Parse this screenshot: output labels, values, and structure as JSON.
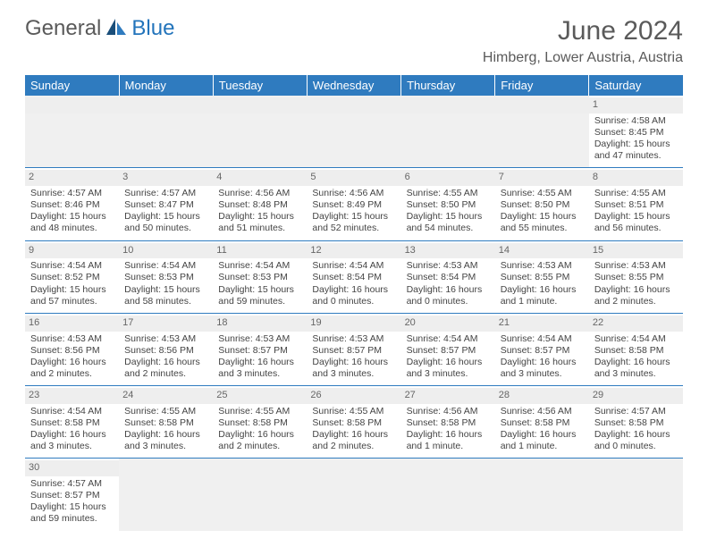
{
  "logo": {
    "textA": "General",
    "textB": "Blue"
  },
  "title": "June 2024",
  "subtitle": "Himberg, Lower Austria, Austria",
  "colors": {
    "header_bg": "#2f7bbf",
    "header_fg": "#ffffff",
    "daynum_bg": "#eeeeee",
    "rule": "#2f7bbf",
    "title": "#5a5a5a"
  },
  "dayHeaders": [
    "Sunday",
    "Monday",
    "Tuesday",
    "Wednesday",
    "Thursday",
    "Friday",
    "Saturday"
  ],
  "weeks": [
    [
      null,
      null,
      null,
      null,
      null,
      null,
      {
        "n": "1",
        "sunrise": "Sunrise: 4:58 AM",
        "sunset": "Sunset: 8:45 PM",
        "daylight": "Daylight: 15 hours and 47 minutes."
      }
    ],
    [
      {
        "n": "2",
        "sunrise": "Sunrise: 4:57 AM",
        "sunset": "Sunset: 8:46 PM",
        "daylight": "Daylight: 15 hours and 48 minutes."
      },
      {
        "n": "3",
        "sunrise": "Sunrise: 4:57 AM",
        "sunset": "Sunset: 8:47 PM",
        "daylight": "Daylight: 15 hours and 50 minutes."
      },
      {
        "n": "4",
        "sunrise": "Sunrise: 4:56 AM",
        "sunset": "Sunset: 8:48 PM",
        "daylight": "Daylight: 15 hours and 51 minutes."
      },
      {
        "n": "5",
        "sunrise": "Sunrise: 4:56 AM",
        "sunset": "Sunset: 8:49 PM",
        "daylight": "Daylight: 15 hours and 52 minutes."
      },
      {
        "n": "6",
        "sunrise": "Sunrise: 4:55 AM",
        "sunset": "Sunset: 8:50 PM",
        "daylight": "Daylight: 15 hours and 54 minutes."
      },
      {
        "n": "7",
        "sunrise": "Sunrise: 4:55 AM",
        "sunset": "Sunset: 8:50 PM",
        "daylight": "Daylight: 15 hours and 55 minutes."
      },
      {
        "n": "8",
        "sunrise": "Sunrise: 4:55 AM",
        "sunset": "Sunset: 8:51 PM",
        "daylight": "Daylight: 15 hours and 56 minutes."
      }
    ],
    [
      {
        "n": "9",
        "sunrise": "Sunrise: 4:54 AM",
        "sunset": "Sunset: 8:52 PM",
        "daylight": "Daylight: 15 hours and 57 minutes."
      },
      {
        "n": "10",
        "sunrise": "Sunrise: 4:54 AM",
        "sunset": "Sunset: 8:53 PM",
        "daylight": "Daylight: 15 hours and 58 minutes."
      },
      {
        "n": "11",
        "sunrise": "Sunrise: 4:54 AM",
        "sunset": "Sunset: 8:53 PM",
        "daylight": "Daylight: 15 hours and 59 minutes."
      },
      {
        "n": "12",
        "sunrise": "Sunrise: 4:54 AM",
        "sunset": "Sunset: 8:54 PM",
        "daylight": "Daylight: 16 hours and 0 minutes."
      },
      {
        "n": "13",
        "sunrise": "Sunrise: 4:53 AM",
        "sunset": "Sunset: 8:54 PM",
        "daylight": "Daylight: 16 hours and 0 minutes."
      },
      {
        "n": "14",
        "sunrise": "Sunrise: 4:53 AM",
        "sunset": "Sunset: 8:55 PM",
        "daylight": "Daylight: 16 hours and 1 minute."
      },
      {
        "n": "15",
        "sunrise": "Sunrise: 4:53 AM",
        "sunset": "Sunset: 8:55 PM",
        "daylight": "Daylight: 16 hours and 2 minutes."
      }
    ],
    [
      {
        "n": "16",
        "sunrise": "Sunrise: 4:53 AM",
        "sunset": "Sunset: 8:56 PM",
        "daylight": "Daylight: 16 hours and 2 minutes."
      },
      {
        "n": "17",
        "sunrise": "Sunrise: 4:53 AM",
        "sunset": "Sunset: 8:56 PM",
        "daylight": "Daylight: 16 hours and 2 minutes."
      },
      {
        "n": "18",
        "sunrise": "Sunrise: 4:53 AM",
        "sunset": "Sunset: 8:57 PM",
        "daylight": "Daylight: 16 hours and 3 minutes."
      },
      {
        "n": "19",
        "sunrise": "Sunrise: 4:53 AM",
        "sunset": "Sunset: 8:57 PM",
        "daylight": "Daylight: 16 hours and 3 minutes."
      },
      {
        "n": "20",
        "sunrise": "Sunrise: 4:54 AM",
        "sunset": "Sunset: 8:57 PM",
        "daylight": "Daylight: 16 hours and 3 minutes."
      },
      {
        "n": "21",
        "sunrise": "Sunrise: 4:54 AM",
        "sunset": "Sunset: 8:57 PM",
        "daylight": "Daylight: 16 hours and 3 minutes."
      },
      {
        "n": "22",
        "sunrise": "Sunrise: 4:54 AM",
        "sunset": "Sunset: 8:58 PM",
        "daylight": "Daylight: 16 hours and 3 minutes."
      }
    ],
    [
      {
        "n": "23",
        "sunrise": "Sunrise: 4:54 AM",
        "sunset": "Sunset: 8:58 PM",
        "daylight": "Daylight: 16 hours and 3 minutes."
      },
      {
        "n": "24",
        "sunrise": "Sunrise: 4:55 AM",
        "sunset": "Sunset: 8:58 PM",
        "daylight": "Daylight: 16 hours and 3 minutes."
      },
      {
        "n": "25",
        "sunrise": "Sunrise: 4:55 AM",
        "sunset": "Sunset: 8:58 PM",
        "daylight": "Daylight: 16 hours and 2 minutes."
      },
      {
        "n": "26",
        "sunrise": "Sunrise: 4:55 AM",
        "sunset": "Sunset: 8:58 PM",
        "daylight": "Daylight: 16 hours and 2 minutes."
      },
      {
        "n": "27",
        "sunrise": "Sunrise: 4:56 AM",
        "sunset": "Sunset: 8:58 PM",
        "daylight": "Daylight: 16 hours and 1 minute."
      },
      {
        "n": "28",
        "sunrise": "Sunrise: 4:56 AM",
        "sunset": "Sunset: 8:58 PM",
        "daylight": "Daylight: 16 hours and 1 minute."
      },
      {
        "n": "29",
        "sunrise": "Sunrise: 4:57 AM",
        "sunset": "Sunset: 8:58 PM",
        "daylight": "Daylight: 16 hours and 0 minutes."
      }
    ],
    [
      {
        "n": "30",
        "sunrise": "Sunrise: 4:57 AM",
        "sunset": "Sunset: 8:57 PM",
        "daylight": "Daylight: 15 hours and 59 minutes."
      },
      null,
      null,
      null,
      null,
      null,
      null
    ]
  ]
}
